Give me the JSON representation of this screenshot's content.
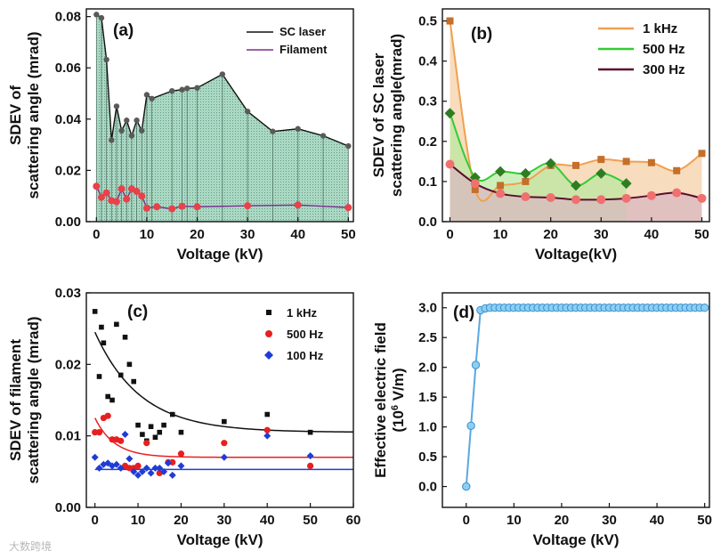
{
  "watermark": "大数跨境",
  "chart_data": [
    {
      "panel": "a",
      "type": "area",
      "tag": "(a)",
      "xlabel": "Voltage (kV)",
      "ylabel_lines": [
        "SDEV of",
        "scattering angle (mrad)"
      ],
      "xlim": [
        -2,
        51
      ],
      "ylim": [
        0,
        0.083
      ],
      "xticks": [
        0,
        10,
        20,
        30,
        40,
        50
      ],
      "yticks": [
        0.0,
        0.02,
        0.04,
        0.06,
        0.08
      ],
      "ytick_labels": [
        "0.00",
        "0.02",
        "0.04",
        "0.06",
        "0.08"
      ],
      "legend_position": "top-right",
      "colors": {
        "sc": "#111111",
        "filament": "#7b2c8f",
        "fill": "#a9d8c3",
        "points": "#5a5a5a",
        "fil_points": "#e8414a"
      },
      "series": [
        {
          "name": "SC laser",
          "x": [
            0,
            1,
            2,
            3,
            4,
            5,
            6,
            7,
            8,
            9,
            10,
            11,
            15,
            17,
            18,
            20,
            25,
            30,
            35,
            40,
            45,
            50
          ],
          "y": [
            0.0808,
            0.0795,
            0.0632,
            0.0318,
            0.045,
            0.0355,
            0.0395,
            0.0335,
            0.0395,
            0.0355,
            0.0495,
            0.048,
            0.051,
            0.0515,
            0.052,
            0.0522,
            0.0575,
            0.043,
            0.0352,
            0.0362,
            0.0335,
            0.0295
          ]
        },
        {
          "name": "Filament",
          "x": [
            0,
            1,
            2,
            3,
            4,
            5,
            6,
            7,
            8,
            9,
            10,
            12,
            15,
            17,
            20,
            30,
            40,
            50
          ],
          "y": [
            0.0138,
            0.0095,
            0.0112,
            0.0082,
            0.0078,
            0.0128,
            0.0088,
            0.0128,
            0.0118,
            0.01,
            0.0053,
            0.0058,
            0.005,
            0.006,
            0.0058,
            0.0062,
            0.0065,
            0.0055
          ]
        }
      ]
    },
    {
      "panel": "b",
      "type": "area",
      "tag": "(b)",
      "xlabel": "Voltage(kV)",
      "ylabel_lines": [
        "SDEV of SC laser",
        "scattering angle(mrad)"
      ],
      "xlim": [
        -1.5,
        51.5
      ],
      "ylim": [
        0,
        0.53
      ],
      "xticks": [
        0,
        10,
        20,
        30,
        40,
        50
      ],
      "yticks": [
        0.0,
        0.1,
        0.2,
        0.3,
        0.4,
        0.5
      ],
      "ytick_labels": [
        "0.0",
        "0.1",
        "0.2",
        "0.3",
        "0.4",
        "0.5"
      ],
      "legend_position": "top-right",
      "colors": {
        "s1": "#f0a050",
        "s1_fill": "#f4d0a8",
        "s1_pt": "#c46f2a",
        "s2": "#33cc33",
        "s2_fill": "#b8e8a0",
        "s2_pt": "#2e7d22",
        "s3": "#5a0f2e",
        "s3_fill": "#d8b8c0",
        "s3_pt": "#f07070"
      },
      "series": [
        {
          "name": "1 kHz",
          "x": [
            0,
            5,
            10,
            15,
            20,
            25,
            30,
            35,
            40,
            45,
            50
          ],
          "y": [
            0.5,
            0.08,
            0.09,
            0.1,
            0.14,
            0.14,
            0.155,
            0.15,
            0.147,
            0.127,
            0.17
          ]
        },
        {
          "name": "500 Hz",
          "x": [
            0,
            5,
            10,
            15,
            20,
            25,
            30,
            35
          ],
          "y": [
            0.27,
            0.11,
            0.125,
            0.12,
            0.145,
            0.09,
            0.12,
            0.095
          ]
        },
        {
          "name": "300 Hz",
          "x": [
            0,
            5,
            10,
            15,
            20,
            25,
            30,
            35,
            40,
            45,
            50
          ],
          "y": [
            0.143,
            0.095,
            0.07,
            0.062,
            0.06,
            0.055,
            0.055,
            0.058,
            0.065,
            0.072,
            0.058
          ]
        }
      ]
    },
    {
      "panel": "c",
      "type": "scatter",
      "tag": "(c)",
      "xlabel": "Voltage (kV)",
      "ylabel_lines": [
        "SDEV of filament",
        "scattering angle (mrad)"
      ],
      "xlim": [
        -2,
        60
      ],
      "ylim": [
        0,
        0.03
      ],
      "xticks": [
        0,
        10,
        20,
        30,
        40,
        50,
        60
      ],
      "yticks": [
        0.0,
        0.01,
        0.02,
        0.03
      ],
      "ytick_labels": [
        "0.00",
        "0.01",
        "0.02",
        "0.03"
      ],
      "legend_position": "top-right",
      "colors": {
        "s1": "#111111",
        "s2": "#e62020",
        "s3": "#1f3cd6"
      },
      "series": [
        {
          "name": "1 kHz",
          "x": [
            0,
            1,
            1.5,
            2,
            3,
            4,
            5,
            6,
            7,
            8,
            9,
            10,
            11,
            12,
            13,
            14,
            15,
            16,
            18,
            20,
            30,
            40,
            50
          ],
          "y": [
            0.0274,
            0.0183,
            0.0252,
            0.023,
            0.0155,
            0.015,
            0.0256,
            0.0185,
            0.0238,
            0.02,
            0.0176,
            0.0115,
            0.0102,
            0.0093,
            0.0113,
            0.0098,
            0.0105,
            0.0115,
            0.013,
            0.0105,
            0.012,
            0.013,
            0.0105
          ]
        },
        {
          "name": "500 Hz",
          "x": [
            0,
            1,
            2,
            3,
            4,
            5,
            6,
            7,
            8,
            9,
            10,
            12,
            15,
            17,
            18,
            20,
            30,
            40,
            50
          ],
          "y": [
            0.0105,
            0.0105,
            0.0125,
            0.0128,
            0.0095,
            0.0095,
            0.0093,
            0.0058,
            0.0055,
            0.0055,
            0.0058,
            0.009,
            0.0048,
            0.0063,
            0.0063,
            0.0075,
            0.009,
            0.0108,
            0.0058
          ]
        },
        {
          "name": "100 Hz",
          "x": [
            0,
            1,
            2,
            3,
            4,
            5,
            6,
            7,
            8,
            9,
            10,
            11,
            12,
            13,
            14,
            15,
            16,
            17,
            18,
            20,
            30,
            40,
            50
          ],
          "y": [
            0.007,
            0.0055,
            0.006,
            0.0062,
            0.0058,
            0.006,
            0.0055,
            0.0102,
            0.0068,
            0.005,
            0.0045,
            0.005,
            0.0055,
            0.0048,
            0.0055,
            0.0055,
            0.005,
            0.0062,
            0.0045,
            0.0058,
            0.007,
            0.01,
            0.0072
          ]
        }
      ],
      "fits": [
        {
          "series": "1 kHz",
          "a": 0.0105,
          "b": 0.014,
          "tau": 10.5
        },
        {
          "series": "500 Hz",
          "a": 0.007,
          "b": 0.0055,
          "tau": 4.5
        },
        {
          "series": "100 Hz",
          "a": 0.0053,
          "b": 0.0,
          "tau": 1.0
        }
      ]
    },
    {
      "panel": "d",
      "type": "line",
      "tag": "(d)",
      "xlabel": "Voltage (kV)",
      "ylabel_lines": [
        "Effective electric field",
        "(10^6 V/m)"
      ],
      "ylabel_base": "(10",
      "ylabel_exp": "6",
      "ylabel_tail": " V/m)",
      "xlim": [
        -5,
        51
      ],
      "ylim": [
        -0.35,
        3.25
      ],
      "xticks": [
        0,
        10,
        20,
        30,
        40,
        50
      ],
      "yticks": [
        0.0,
        0.5,
        1.0,
        1.5,
        2.0,
        2.5,
        3.0
      ],
      "ytick_labels": [
        "0.0",
        "0.5",
        "1.0",
        "1.5",
        "2.0",
        "2.5",
        "3.0"
      ],
      "colors": {
        "line": "#5aa8e0",
        "point_fill": "#8ccff2",
        "point_edge": "#3a8fcf"
      },
      "series": [
        {
          "x": [
            0,
            1,
            2,
            3,
            4,
            5,
            6,
            7,
            8,
            9,
            10,
            11,
            12,
            13,
            14,
            15,
            16,
            17,
            18,
            19,
            20,
            21,
            22,
            23,
            24,
            25,
            26,
            27,
            28,
            29,
            30,
            31,
            32,
            33,
            34,
            35,
            36,
            37,
            38,
            39,
            40,
            41,
            42,
            43,
            44,
            45,
            46,
            47,
            48,
            49,
            50
          ],
          "y": [
            0.0,
            1.02,
            2.04,
            2.96,
            2.99,
            3.0,
            3.0,
            3.0,
            3.0,
            3.0,
            3.0,
            3.0,
            3.0,
            3.0,
            3.0,
            3.0,
            3.0,
            3.0,
            3.0,
            3.0,
            3.0,
            3.0,
            3.0,
            3.0,
            3.0,
            3.0,
            3.0,
            3.0,
            3.0,
            3.0,
            3.0,
            3.0,
            3.0,
            3.0,
            3.0,
            3.0,
            3.0,
            3.0,
            3.0,
            3.0,
            3.0,
            3.0,
            3.0,
            3.0,
            3.0,
            3.0,
            3.0,
            3.0,
            3.0,
            3.0,
            3.0
          ]
        }
      ]
    }
  ]
}
